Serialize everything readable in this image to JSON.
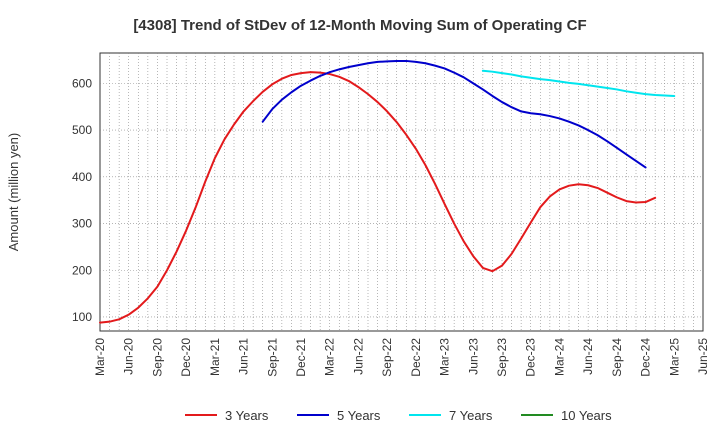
{
  "chart_data": {
    "type": "line",
    "title": "[4308]  Trend of StDev of 12-Month Moving Sum of Operating CF",
    "ylabel": "Amount (million yen)",
    "xlabel": "",
    "ylim": [
      70,
      665
    ],
    "yticks": [
      100,
      200,
      300,
      400,
      500,
      600
    ],
    "xlim": [
      "2020-03",
      "2025-06"
    ],
    "xticks": [
      "Mar-20",
      "Jun-20",
      "Sep-20",
      "Dec-20",
      "Mar-21",
      "Jun-21",
      "Sep-21",
      "Dec-21",
      "Mar-22",
      "Jun-22",
      "Sep-22",
      "Dec-22",
      "Mar-23",
      "Jun-23",
      "Sep-23",
      "Dec-23",
      "Mar-24",
      "Jun-24",
      "Sep-24",
      "Dec-24",
      "Mar-25",
      "Jun-25"
    ],
    "grid": true,
    "legend_position": "bottom",
    "series": [
      {
        "name": "3 Years",
        "color": "#e31a1c",
        "points": [
          [
            "2020-03",
            88
          ],
          [
            "2020-04",
            90
          ],
          [
            "2020-05",
            95
          ],
          [
            "2020-06",
            105
          ],
          [
            "2020-07",
            120
          ],
          [
            "2020-08",
            140
          ],
          [
            "2020-09",
            165
          ],
          [
            "2020-10",
            200
          ],
          [
            "2020-11",
            240
          ],
          [
            "2020-12",
            285
          ],
          [
            "2021-01",
            335
          ],
          [
            "2021-02",
            390
          ],
          [
            "2021-03",
            440
          ],
          [
            "2021-04",
            480
          ],
          [
            "2021-05",
            512
          ],
          [
            "2021-06",
            540
          ],
          [
            "2021-07",
            562
          ],
          [
            "2021-08",
            582
          ],
          [
            "2021-09",
            598
          ],
          [
            "2021-10",
            610
          ],
          [
            "2021-11",
            618
          ],
          [
            "2021-12",
            622
          ],
          [
            "2022-01",
            624
          ],
          [
            "2022-02",
            623
          ],
          [
            "2022-03",
            620
          ],
          [
            "2022-04",
            614
          ],
          [
            "2022-05",
            605
          ],
          [
            "2022-06",
            592
          ],
          [
            "2022-07",
            577
          ],
          [
            "2022-08",
            560
          ],
          [
            "2022-09",
            540
          ],
          [
            "2022-10",
            517
          ],
          [
            "2022-11",
            490
          ],
          [
            "2022-12",
            460
          ],
          [
            "2023-01",
            425
          ],
          [
            "2023-02",
            385
          ],
          [
            "2023-03",
            342
          ],
          [
            "2023-04",
            300
          ],
          [
            "2023-05",
            262
          ],
          [
            "2023-06",
            230
          ],
          [
            "2023-07",
            205
          ],
          [
            "2023-08",
            198
          ],
          [
            "2023-09",
            210
          ],
          [
            "2023-10",
            235
          ],
          [
            "2023-11",
            268
          ],
          [
            "2023-12",
            302
          ],
          [
            "2024-01",
            335
          ],
          [
            "2024-02",
            358
          ],
          [
            "2024-03",
            373
          ],
          [
            "2024-04",
            381
          ],
          [
            "2024-05",
            384
          ],
          [
            "2024-06",
            382
          ],
          [
            "2024-07",
            376
          ],
          [
            "2024-08",
            366
          ],
          [
            "2024-09",
            356
          ],
          [
            "2024-10",
            348
          ],
          [
            "2024-11",
            345
          ],
          [
            "2024-12",
            346
          ],
          [
            "2025-01",
            355
          ]
        ]
      },
      {
        "name": "5 Years",
        "color": "#0000cc",
        "points": [
          [
            "2021-08",
            518
          ],
          [
            "2021-09",
            545
          ],
          [
            "2021-10",
            565
          ],
          [
            "2021-11",
            581
          ],
          [
            "2021-12",
            595
          ],
          [
            "2022-01",
            606
          ],
          [
            "2022-02",
            616
          ],
          [
            "2022-03",
            624
          ],
          [
            "2022-04",
            630
          ],
          [
            "2022-05",
            635
          ],
          [
            "2022-06",
            639
          ],
          [
            "2022-07",
            643
          ],
          [
            "2022-08",
            646
          ],
          [
            "2022-09",
            647
          ],
          [
            "2022-10",
            648
          ],
          [
            "2022-11",
            648
          ],
          [
            "2022-12",
            646
          ],
          [
            "2023-01",
            643
          ],
          [
            "2023-02",
            638
          ],
          [
            "2023-03",
            632
          ],
          [
            "2023-04",
            623
          ],
          [
            "2023-05",
            613
          ],
          [
            "2023-06",
            600
          ],
          [
            "2023-07",
            587
          ],
          [
            "2023-08",
            573
          ],
          [
            "2023-09",
            560
          ],
          [
            "2023-10",
            549
          ],
          [
            "2023-11",
            540
          ],
          [
            "2023-12",
            536
          ],
          [
            "2024-01",
            534
          ],
          [
            "2024-02",
            530
          ],
          [
            "2024-03",
            525
          ],
          [
            "2024-04",
            518
          ],
          [
            "2024-05",
            510
          ],
          [
            "2024-06",
            500
          ],
          [
            "2024-07",
            489
          ],
          [
            "2024-08",
            476
          ],
          [
            "2024-09",
            462
          ],
          [
            "2024-10",
            448
          ],
          [
            "2024-11",
            434
          ],
          [
            "2024-12",
            420
          ]
        ]
      },
      {
        "name": "7 Years",
        "color": "#00e5ee",
        "points": [
          [
            "2023-07",
            627
          ],
          [
            "2023-08",
            625
          ],
          [
            "2023-09",
            622
          ],
          [
            "2023-10",
            619
          ],
          [
            "2023-11",
            615
          ],
          [
            "2023-12",
            612
          ],
          [
            "2024-01",
            609
          ],
          [
            "2024-02",
            607
          ],
          [
            "2024-03",
            604
          ],
          [
            "2024-04",
            601
          ],
          [
            "2024-05",
            599
          ],
          [
            "2024-06",
            596
          ],
          [
            "2024-07",
            593
          ],
          [
            "2024-08",
            590
          ],
          [
            "2024-09",
            587
          ],
          [
            "2024-10",
            583
          ],
          [
            "2024-11",
            580
          ],
          [
            "2024-12",
            577
          ],
          [
            "2025-01",
            575
          ],
          [
            "2025-02",
            574
          ],
          [
            "2025-03",
            573
          ]
        ]
      },
      {
        "name": "10 Years",
        "color": "#228b22",
        "points": []
      }
    ]
  }
}
